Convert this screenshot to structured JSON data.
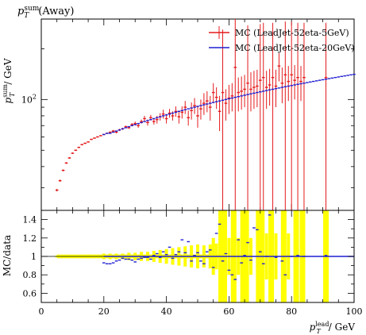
{
  "chart_data": [
    {
      "type": "scatter",
      "panel": "main",
      "title": "p_T^sum (Away)",
      "title_parts": {
        "sym": "p",
        "sub": "T",
        "sup": "sum",
        "rest": "(Away)"
      },
      "ylabel_parts": {
        "sym": "p",
        "sub": "T",
        "sup": "sum",
        "rest": "/ GeV"
      },
      "yscale": "log",
      "xlim": [
        0,
        100
      ],
      "ylim": [
        22,
        300
      ],
      "yticks": [
        {
          "value": 100,
          "base": "10",
          "exp": "2"
        }
      ],
      "legend": {
        "placement": "top-right",
        "entries": [
          {
            "label": "MC (LeadJet-52eta-5GeV)",
            "color": "#e41a1c"
          },
          {
            "label": "MC (LeadJet-52eta-20GeV)",
            "color": "#1f1fd2"
          }
        ]
      },
      "series": [
        {
          "name": "MC (LeadJet-52eta-5GeV)",
          "color": "#e41a1c",
          "points": [
            [
              5,
              29,
              0.5
            ],
            [
              6,
              33,
              0.5
            ],
            [
              7,
              38,
              0.5
            ],
            [
              8,
              42,
              0.5
            ],
            [
              9,
              45,
              0.5
            ],
            [
              10,
              48,
              0.5
            ],
            [
              11,
              50,
              0.5
            ],
            [
              12,
              52,
              0.5
            ],
            [
              13,
              54,
              0.5
            ],
            [
              14,
              55,
              0.5
            ],
            [
              15,
              56,
              0.5
            ],
            [
              16,
              58,
              0.5
            ],
            [
              17,
              59,
              0.5
            ],
            [
              18,
              60,
              0.5
            ],
            [
              19,
              61,
              0.5
            ],
            [
              20,
              62,
              0.5
            ],
            [
              21,
              63,
              0.5
            ],
            [
              22,
              64,
              0.5
            ],
            [
              23,
              65,
              1
            ],
            [
              24,
              64,
              1
            ],
            [
              25,
              66,
              1
            ],
            [
              26,
              67,
              1
            ],
            [
              27,
              69,
              1
            ],
            [
              28,
              68,
              1
            ],
            [
              29,
              71,
              1.5
            ],
            [
              30,
              72,
              2
            ],
            [
              31,
              70,
              2
            ],
            [
              32,
              74,
              2
            ],
            [
              33,
              77,
              3
            ],
            [
              34,
              73,
              3
            ],
            [
              35,
              78,
              3
            ],
            [
              36,
              74,
              3
            ],
            [
              37,
              76,
              4
            ],
            [
              38,
              79,
              4
            ],
            [
              39,
              82,
              5
            ],
            [
              40,
              77,
              5
            ],
            [
              41,
              83,
              5
            ],
            [
              42,
              80,
              5
            ],
            [
              43,
              85,
              6
            ],
            [
              44,
              79,
              7
            ],
            [
              45,
              84,
              7
            ],
            [
              46,
              90,
              8
            ],
            [
              47,
              78,
              8
            ],
            [
              48,
              86,
              10
            ],
            [
              49,
              92,
              10
            ],
            [
              50,
              80,
              12
            ],
            [
              51,
              88,
              12
            ],
            [
              52,
              95,
              14
            ],
            [
              53,
              98,
              14
            ],
            [
              54,
              90,
              15
            ],
            [
              55,
              110,
              15
            ],
            [
              56,
              103,
              15
            ],
            [
              57,
              85,
              20
            ],
            [
              58,
              110,
              150
            ],
            [
              59,
              95,
              20
            ],
            [
              60,
              102,
              20
            ],
            [
              61,
              105,
              20
            ],
            [
              62,
              155,
              150
            ],
            [
              63,
              110,
              25
            ],
            [
              64,
              112,
              25
            ],
            [
              65,
              115,
              25
            ],
            [
              66,
              125,
              150
            ],
            [
              67,
              115,
              30
            ],
            [
              68,
              118,
              30
            ],
            [
              69,
              120,
              30
            ],
            [
              70,
              130,
              150
            ],
            [
              71,
              135,
              150
            ],
            [
              72,
              118,
              30
            ],
            [
              73,
              122,
              30
            ],
            [
              74,
              135,
              150
            ],
            [
              75,
              120,
              30
            ],
            [
              76,
              158,
              30
            ],
            [
              77,
              125,
              30
            ],
            [
              78,
              140,
              150
            ],
            [
              79,
              128,
              30
            ],
            [
              80,
              140,
              150
            ],
            [
              81,
              130,
              30
            ],
            [
              82,
              135,
              150
            ],
            [
              83,
              128,
              30
            ],
            [
              84,
              135,
              150
            ],
            [
              91,
              135,
              150
            ]
          ]
        },
        {
          "name": "MC (LeadJet-52eta-20GeV)",
          "color": "#1f1fd2",
          "x_start": 20,
          "x_step": 1,
          "y": [
            62,
            63,
            63,
            64,
            65,
            66,
            67,
            68,
            69,
            70,
            71,
            72,
            73,
            74,
            75,
            76,
            77,
            78,
            79,
            80,
            81,
            82,
            83,
            84,
            85,
            86,
            87,
            88,
            89,
            90,
            91,
            92,
            93,
            94,
            95,
            96,
            97,
            98,
            99,
            100,
            101,
            102,
            103,
            104,
            105,
            106,
            107,
            108,
            109,
            110,
            111,
            112,
            113,
            114,
            115,
            116,
            117,
            118,
            119,
            120,
            121,
            122,
            123,
            124,
            125,
            126,
            127,
            128,
            129,
            130,
            131,
            132,
            133,
            134,
            135,
            136,
            137,
            138,
            139,
            140,
            141
          ]
        }
      ]
    },
    {
      "type": "scatter",
      "panel": "ratio",
      "xlabel_parts": {
        "sym": "p",
        "sub": "T",
        "sup": "lead",
        "rest": "/ GeV"
      },
      "ylabel": "MC/data",
      "xlim": [
        0,
        100
      ],
      "ylim": [
        0.5,
        1.5
      ],
      "xticks": [
        0,
        20,
        40,
        60,
        80,
        100
      ],
      "yticks": [
        "0.6",
        "0.8",
        "1",
        "1.2",
        "1.4"
      ],
      "reference_line": 1,
      "band_color": "#ffff00",
      "bands": [
        [
          5,
          1,
          0.01
        ],
        [
          10,
          1,
          0.01
        ],
        [
          15,
          1,
          0.02
        ],
        [
          20,
          1,
          0.03
        ],
        [
          22,
          1,
          0.03
        ],
        [
          24,
          1,
          0.03
        ],
        [
          26,
          1,
          0.03
        ],
        [
          28,
          1,
          0.04
        ],
        [
          30,
          1,
          0.04
        ],
        [
          32,
          1,
          0.05
        ],
        [
          34,
          1,
          0.05
        ],
        [
          36,
          1,
          0.06
        ],
        [
          38,
          1,
          0.07
        ],
        [
          40,
          1,
          0.08
        ],
        [
          42,
          1,
          0.09
        ],
        [
          44,
          1,
          0.1
        ],
        [
          46,
          1,
          0.11
        ],
        [
          48,
          1,
          0.12
        ],
        [
          50,
          1,
          0.13
        ],
        [
          52,
          1,
          0.12
        ],
        [
          54,
          1,
          0.13
        ],
        [
          55,
          1,
          0.2
        ],
        [
          56,
          1,
          0.14
        ],
        [
          57.5,
          1,
          0.55
        ],
        [
          58.5,
          1,
          0.55
        ],
        [
          60,
          1,
          0.2
        ],
        [
          61.5,
          1,
          0.55
        ],
        [
          63,
          1,
          0.2
        ],
        [
          64.5,
          1,
          0.55
        ],
        [
          65.5,
          1,
          0.55
        ],
        [
          67,
          1,
          0.2
        ],
        [
          69.5,
          1,
          0.55
        ],
        [
          70.5,
          1,
          0.55
        ],
        [
          72,
          1,
          0.25
        ],
        [
          73.5,
          1,
          0.55
        ],
        [
          75,
          1,
          0.25
        ],
        [
          77.5,
          1,
          0.55
        ],
        [
          79,
          1,
          0.25
        ],
        [
          81.5,
          1,
          0.55
        ],
        [
          83.5,
          1,
          0.55
        ],
        [
          91,
          1,
          0.55
        ]
      ],
      "points": [
        [
          20,
          0.93
        ],
        [
          21,
          0.92
        ],
        [
          22,
          0.92
        ],
        [
          23,
          0.93
        ],
        [
          24,
          0.95
        ],
        [
          25,
          0.96
        ],
        [
          26,
          0.98
        ],
        [
          27,
          0.97
        ],
        [
          28,
          0.97
        ],
        [
          29,
          0.96
        ],
        [
          30,
          0.94
        ],
        [
          31,
          0.97
        ],
        [
          32,
          0.98
        ],
        [
          33,
          0.99
        ],
        [
          34,
          0.99
        ],
        [
          35,
          0.97
        ],
        [
          36,
          1.01
        ],
        [
          37,
          1.03
        ],
        [
          38,
          0.99
        ],
        [
          39,
          1.05
        ],
        [
          40,
          1.02
        ],
        [
          41,
          1.1
        ],
        [
          42,
          0.98
        ],
        [
          43,
          1.02
        ],
        [
          44,
          1.05
        ],
        [
          45,
          1.18
        ],
        [
          46,
          1.04
        ],
        [
          47,
          1.16
        ],
        [
          48,
          0.95
        ],
        [
          49,
          1.01
        ],
        [
          50,
          1.04
        ],
        [
          51,
          0.95
        ],
        [
          52,
          0.92
        ],
        [
          53,
          1.05
        ],
        [
          54,
          1.07
        ],
        [
          55,
          0.88
        ],
        [
          56,
          1.25
        ],
        [
          57,
          1.35
        ],
        [
          58,
          0.95
        ],
        [
          59,
          1.03
        ],
        [
          60,
          0.85
        ],
        [
          61,
          0.8
        ],
        [
          62,
          0.75
        ],
        [
          63,
          1.18
        ],
        [
          64,
          0.93
        ],
        [
          65,
          1.01
        ],
        [
          66,
          1.15
        ],
        [
          67,
          0.96
        ],
        [
          68,
          1.31
        ],
        [
          69,
          1.29
        ],
        [
          70,
          1.05
        ],
        [
          71,
          0.92
        ],
        [
          72,
          1
        ],
        [
          73,
          1.45
        ],
        [
          75,
          0.99
        ],
        [
          77,
          0.95
        ],
        [
          78,
          0.8
        ],
        [
          80,
          1
        ],
        [
          82,
          1.01
        ],
        [
          84,
          1
        ],
        [
          91,
          1.01
        ]
      ]
    }
  ]
}
